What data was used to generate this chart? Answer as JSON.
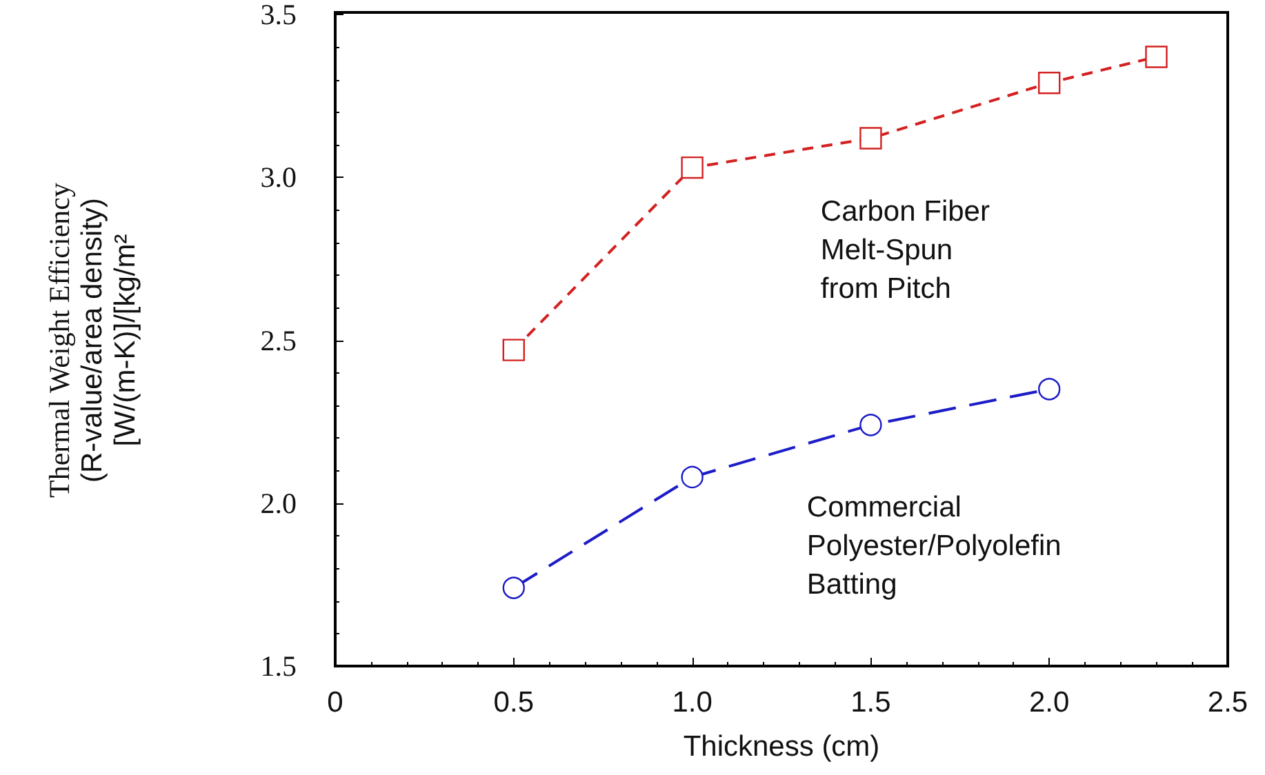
{
  "chart_data": {
    "type": "line",
    "xlabel": "Thickness (cm)",
    "ylabel": "Thermal Weight Efficiency\n(R-value/area density)\n[W/(m-K)]/[kg/m²",
    "xlim": [
      0,
      2.5
    ],
    "xticks": [
      0,
      0.5,
      {
        "value": 1,
        "label": "1.0"
      },
      1.5,
      {
        "value": 2,
        "label": "2.0"
      },
      2.5
    ],
    "ylim": [
      1.5,
      3.5
    ],
    "yticks": [
      1.5,
      {
        "value": 2,
        "label": "2.0"
      },
      2.5,
      {
        "value": 3,
        "label": "3.0"
      },
      3.5
    ],
    "grid": false,
    "legend": false,
    "series": [
      {
        "name": "Carbon Fiber\nMelt-Spun\nfrom Pitch",
        "color": "#d42020",
        "marker": "square",
        "line_style": "dashed",
        "x": [
          0.5,
          1.0,
          1.5,
          2.0,
          2.3
        ],
        "values": [
          2.47,
          3.03,
          3.12,
          3.29,
          3.37
        ]
      },
      {
        "name": "Commercial\nPolyester/Polyolefin\nBatting",
        "color": "#1c1cc8",
        "marker": "circle",
        "line_style": "dashed",
        "x": [
          0.5,
          1.0,
          1.5,
          2.0
        ],
        "values": [
          1.74,
          2.08,
          2.24,
          2.35
        ]
      }
    ]
  }
}
